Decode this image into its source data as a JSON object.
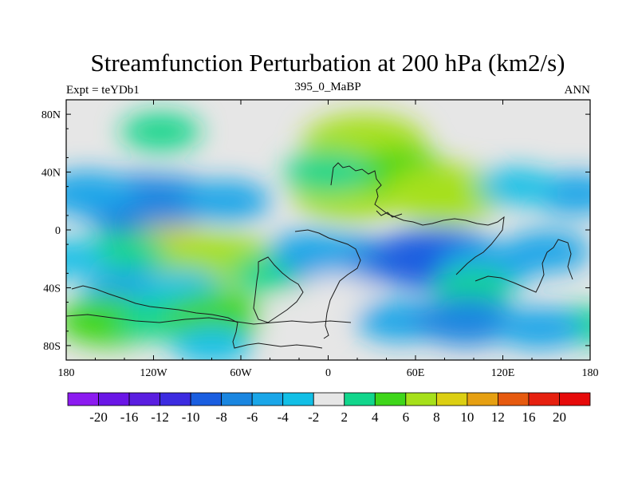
{
  "chart_data": {
    "type": "heatmap",
    "title": "Streamfunction Perturbation at 200 hPa (km2/s)",
    "left_label": "Expt = teYDb1",
    "center_label": "395_0_MaBP",
    "right_label": "ANN",
    "x_ticks": [
      {
        "value": -180,
        "label": "180"
      },
      {
        "value": -120,
        "label": "120W"
      },
      {
        "value": -60,
        "label": "60W"
      },
      {
        "value": 0,
        "label": "0"
      },
      {
        "value": 60,
        "label": "60E"
      },
      {
        "value": 120,
        "label": "120E"
      },
      {
        "value": 180,
        "label": "180"
      }
    ],
    "y_ticks": [
      {
        "value": 80,
        "label": "80N"
      },
      {
        "value": 40,
        "label": "40N"
      },
      {
        "value": 0,
        "label": "0"
      },
      {
        "value": -40,
        "label": "40S"
      },
      {
        "value": -80,
        "label": "80S"
      }
    ],
    "xlim": [
      -180,
      180
    ],
    "ylim": [
      -90,
      90
    ],
    "levels": [
      -20,
      -16,
      -12,
      -10,
      -8,
      -6,
      -4,
      -2,
      2,
      4,
      6,
      8,
      10,
      12,
      16,
      20
    ],
    "level_labels": [
      "-20",
      "-16",
      "-12",
      "-10",
      "-8",
      "-6",
      "-4",
      "-2",
      "2",
      "4",
      "6",
      "8",
      "10",
      "12",
      "16",
      "20"
    ],
    "colors": [
      "#8c1bf0",
      "#6a16e6",
      "#5a1ee0",
      "#3c2be0",
      "#1a5ee0",
      "#1a86e0",
      "#1aa6e8",
      "#12bfe6",
      "#e6e6e6",
      "#12d68c",
      "#3fd61a",
      "#a6e01a",
      "#dccf12",
      "#e6a012",
      "#e65a0f",
      "#e6200f",
      "#e60a0a"
    ],
    "background_color": "#e6e6e6",
    "cells": [
      {
        "lon": -115,
        "lat": 68,
        "value": 3
      },
      {
        "lon": 20,
        "lat": 55,
        "value": 6
      },
      {
        "lon": 25,
        "lat": 60,
        "value": 8
      },
      {
        "lon": 15,
        "lat": 25,
        "value": 7
      },
      {
        "lon": 50,
        "lat": 40,
        "value": 5
      },
      {
        "lon": 80,
        "lat": 25,
        "value": 8
      },
      {
        "lon": 0,
        "lat": 40,
        "value": 4
      },
      {
        "lon": -130,
        "lat": 18,
        "value": -8
      },
      {
        "lon": -110,
        "lat": 20,
        "value": -6
      },
      {
        "lon": -165,
        "lat": 25,
        "value": -5
      },
      {
        "lon": -70,
        "lat": 20,
        "value": -4
      },
      {
        "lon": 170,
        "lat": 25,
        "value": -4
      },
      {
        "lon": 130,
        "lat": 30,
        "value": -3
      },
      {
        "lon": -110,
        "lat": -20,
        "value": 10
      },
      {
        "lon": -75,
        "lat": -22,
        "value": 8
      },
      {
        "lon": -140,
        "lat": -15,
        "value": 4
      },
      {
        "lon": -40,
        "lat": -30,
        "value": 3
      },
      {
        "lon": 10,
        "lat": -22,
        "value": -7
      },
      {
        "lon": 75,
        "lat": -20,
        "value": -9
      },
      {
        "lon": 110,
        "lat": -25,
        "value": -5
      },
      {
        "lon": 150,
        "lat": -15,
        "value": -4
      },
      {
        "lon": -10,
        "lat": -15,
        "value": -4
      },
      {
        "lon": -180,
        "lat": -20,
        "value": -3
      },
      {
        "lon": -135,
        "lat": -42,
        "value": -5
      },
      {
        "lon": -100,
        "lat": -40,
        "value": -3
      },
      {
        "lon": -150,
        "lat": -63,
        "value": 6
      },
      {
        "lon": -115,
        "lat": -62,
        "value": 4
      },
      {
        "lon": -75,
        "lat": -60,
        "value": 6
      },
      {
        "lon": -25,
        "lat": -62,
        "value": 2
      },
      {
        "lon": 5,
        "lat": -42,
        "value": 2
      },
      {
        "lon": 100,
        "lat": -40,
        "value": 3
      },
      {
        "lon": 175,
        "lat": -66,
        "value": 3
      },
      {
        "lon": 50,
        "lat": -63,
        "value": -4
      },
      {
        "lon": 95,
        "lat": -63,
        "value": -6
      },
      {
        "lon": 145,
        "lat": -68,
        "value": -4
      },
      {
        "lon": -80,
        "lat": -80,
        "value": -3
      }
    ]
  }
}
